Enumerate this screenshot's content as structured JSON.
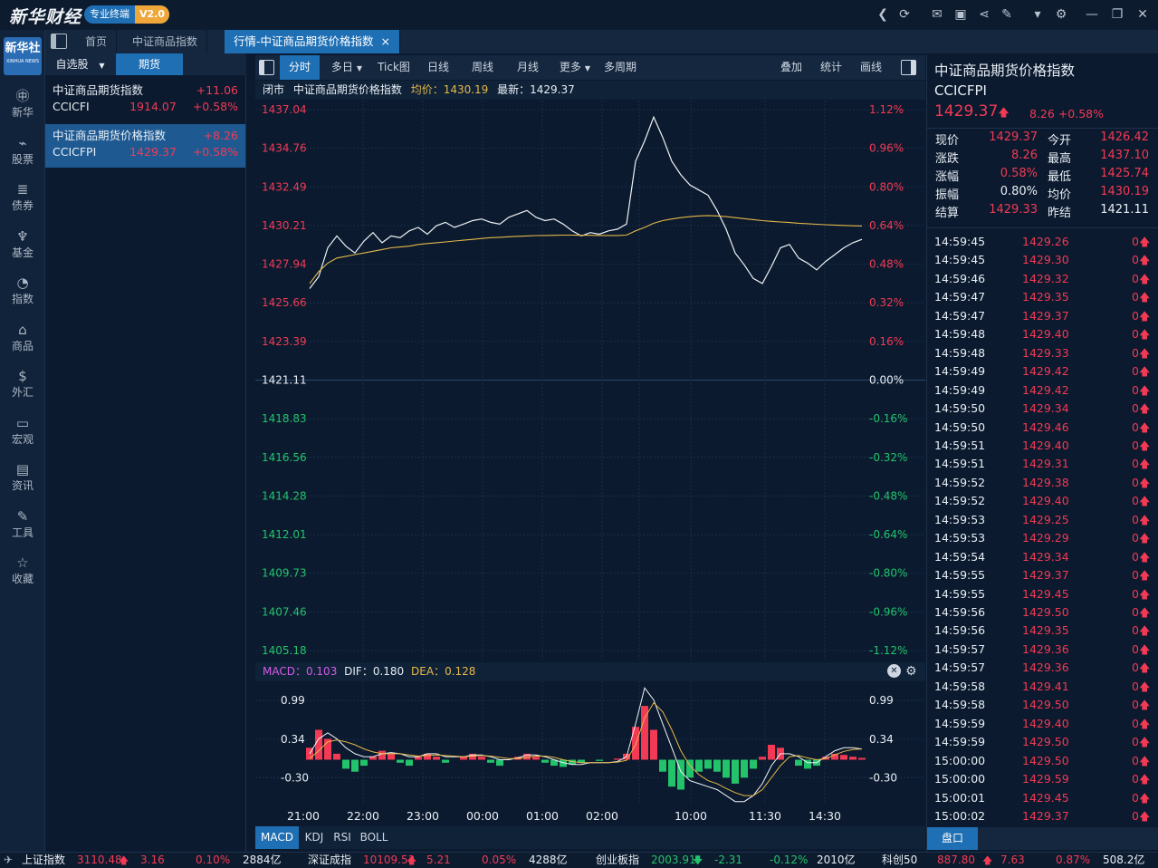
{
  "app": {
    "logo": "新华财经",
    "badge": "专业终端",
    "version": "V2.0"
  },
  "titlebar_icons": [
    "back-icon",
    "refresh-icon",
    "mail-icon",
    "chat-icon",
    "share-icon",
    "notes-icon",
    "shirt-icon",
    "gear-icon",
    "minimize-icon",
    "restore-icon",
    "close-icon"
  ],
  "sidebar": {
    "logo": "新华社",
    "logo_sub": "XINHUA NEWS",
    "items": [
      {
        "label": "新华",
        "icon": "xinhua-icon"
      },
      {
        "label": "股票",
        "icon": "stock-icon"
      },
      {
        "label": "债券",
        "icon": "bond-icon"
      },
      {
        "label": "基金",
        "icon": "fund-icon"
      },
      {
        "label": "指数",
        "icon": "index-icon"
      },
      {
        "label": "商品",
        "icon": "commodity-icon"
      },
      {
        "label": "外汇",
        "icon": "forex-icon"
      },
      {
        "label": "宏观",
        "icon": "macro-icon"
      },
      {
        "label": "资讯",
        "icon": "news-icon"
      },
      {
        "label": "工具",
        "icon": "tools-icon"
      },
      {
        "label": "收藏",
        "icon": "favorite-icon"
      }
    ]
  },
  "tabs": [
    {
      "label": "首页"
    },
    {
      "label": "中证商品指数"
    },
    {
      "label": "行情-中证商品期货价格指数",
      "close": "×"
    }
  ],
  "watchlist": {
    "tabs": [
      {
        "label": "自选股",
        "arrow": "▼"
      },
      {
        "label": "期货"
      }
    ],
    "items": [
      {
        "name": "中证商品期货指数",
        "code": "CCICFI",
        "change": "+11.06",
        "price": "1914.07",
        "pct": "+0.58%"
      },
      {
        "name": "中证商品期货价格指数",
        "code": "CCICFPI",
        "change": "+8.26",
        "price": "1429.37",
        "pct": "+0.58%"
      }
    ]
  },
  "chart_toolbar": {
    "left": [
      "分时",
      "多日",
      "Tick图",
      "日线",
      "周线",
      "月线",
      "更多",
      "多周期"
    ],
    "arrows": [
      "▼",
      "▼"
    ],
    "right": [
      "叠加",
      "统计",
      "画线"
    ]
  },
  "chart_info": {
    "status": "闭市",
    "name": "中证商品期货价格指数",
    "avg": "均价：1430.19",
    "last": "最新：1429.37"
  },
  "macd_info": {
    "macd": "MACD：0.103",
    "dif": "DIF：0.180",
    "dea": "DEA：0.128"
  },
  "indicator_tabs": [
    "MACD",
    "KDJ",
    "RSI",
    "BOLL"
  ],
  "chart_data": [
    {
      "type": "line",
      "title": "",
      "y_ticks_left": [
        "1437.04",
        "1434.76",
        "1432.49",
        "1430.21",
        "1427.94",
        "1425.66",
        "1423.39",
        "1421.11",
        "1418.83",
        "1416.56",
        "1414.28",
        "1412.01",
        "1409.73",
        "1407.46",
        "1405.18"
      ],
      "y_ticks_right": [
        "1.12%",
        "0.96%",
        "0.80%",
        "0.64%",
        "0.48%",
        "0.32%",
        "0.16%",
        "0.00%",
        "-0.16%",
        "-0.32%",
        "-0.48%",
        "-0.64%",
        "-0.80%",
        "-0.96%",
        "-1.12%"
      ],
      "x_ticks": [
        "21:00",
        "22:00",
        "23:00",
        "00:00",
        "01:00",
        "02:00",
        "10:00",
        "11:30",
        "14:30"
      ],
      "ylim": [
        1405.18,
        1437.04
      ],
      "prev_close": 1421.11,
      "series": [
        {
          "name": "",
          "values": [
            1426.5,
            1427.2,
            1428.9,
            1429.6,
            1429.0,
            1428.6,
            1429.3,
            1429.8,
            1429.2,
            1429.6,
            1429.5,
            1429.9,
            1430.1,
            1429.7,
            1430.2,
            1430.4,
            1430.1,
            1430.3,
            1430.5,
            1430.6,
            1430.4,
            1430.3,
            1430.7,
            1430.9,
            1431.1,
            1430.7,
            1430.5,
            1430.6,
            1430.3,
            1429.9,
            1429.6,
            1429.8,
            1429.7,
            1429.9,
            1430.0,
            1430.3,
            1434.0,
            1435.2,
            1436.6,
            1435.4,
            1434.0,
            1433.2,
            1432.6,
            1432.3,
            1432.0,
            1431.1,
            1430.0,
            1428.6,
            1427.9,
            1427.1,
            1426.8,
            1427.8,
            1428.9,
            1429.1,
            1428.3,
            1428.0,
            1427.6,
            1428.1,
            1428.5,
            1428.9,
            1429.2,
            1429.4
          ]
        },
        {
          "name": "",
          "values": [
            1426.8,
            1427.5,
            1428.0,
            1428.3,
            1428.4,
            1428.5,
            1428.6,
            1428.7,
            1428.8,
            1428.9,
            1428.95,
            1429.0,
            1429.1,
            1429.15,
            1429.2,
            1429.25,
            1429.3,
            1429.35,
            1429.4,
            1429.45,
            1429.5,
            1429.52,
            1429.55,
            1429.58,
            1429.6,
            1429.62,
            1429.63,
            1429.64,
            1429.65,
            1429.65,
            1429.64,
            1429.64,
            1429.63,
            1429.63,
            1429.63,
            1429.65,
            1429.9,
            1430.1,
            1430.35,
            1430.5,
            1430.6,
            1430.68,
            1430.74,
            1430.78,
            1430.8,
            1430.78,
            1430.74,
            1430.68,
            1430.62,
            1430.56,
            1430.5,
            1430.46,
            1430.42,
            1430.39,
            1430.35,
            1430.32,
            1430.29,
            1430.26,
            1430.24,
            1430.22,
            1430.2,
            1430.19
          ]
        }
      ]
    },
    {
      "type": "bar",
      "title": "",
      "y_ticks": [
        "0.99",
        "0.34",
        "-0.30"
      ],
      "x_ticks": [
        "21:00",
        "22:00",
        "23:00",
        "00:00",
        "01:00",
        "02:00",
        "10:00",
        "11:30",
        "14:30"
      ],
      "ylim": [
        -0.75,
        1.25
      ],
      "series": [
        {
          "name": "",
          "values": [
            0.2,
            0.5,
            0.35,
            0.1,
            -0.15,
            -0.2,
            -0.1,
            0.05,
            0.15,
            0.1,
            -0.05,
            -0.1,
            0.05,
            0.1,
            0.05,
            -0.05,
            0.0,
            0.05,
            0.1,
            0.05,
            -0.05,
            -0.1,
            0.0,
            0.05,
            0.1,
            0.05,
            -0.05,
            -0.1,
            -0.12,
            -0.08,
            -0.05,
            0.0,
            -0.02,
            0.0,
            0.02,
            0.1,
            0.55,
            0.9,
            0.5,
            -0.2,
            -0.45,
            -0.5,
            -0.3,
            -0.2,
            -0.15,
            -0.2,
            -0.3,
            -0.4,
            -0.3,
            -0.15,
            0.05,
            0.25,
            0.2,
            0.0,
            -0.1,
            -0.15,
            -0.1,
            0.05,
            0.1,
            0.08,
            0.05,
            0.03
          ]
        },
        {
          "name": "",
          "values": [
            0.1,
            0.35,
            0.45,
            0.35,
            0.2,
            0.1,
            0.05,
            0.05,
            0.1,
            0.12,
            0.1,
            0.05,
            0.05,
            0.1,
            0.1,
            0.05,
            0.05,
            0.05,
            0.08,
            0.08,
            0.05,
            0.0,
            0.0,
            0.03,
            0.08,
            0.08,
            0.05,
            0.0,
            -0.05,
            -0.08,
            -0.08,
            -0.05,
            -0.05,
            -0.05,
            -0.03,
            0.05,
            0.6,
            1.2,
            1.0,
            0.6,
            0.2,
            -0.2,
            -0.35,
            -0.4,
            -0.45,
            -0.5,
            -0.6,
            -0.7,
            -0.7,
            -0.6,
            -0.4,
            -0.1,
            0.1,
            0.1,
            0.05,
            -0.05,
            -0.05,
            0.05,
            0.15,
            0.2,
            0.2,
            0.18
          ]
        },
        {
          "name": "",
          "values": [
            0.02,
            0.15,
            0.3,
            0.33,
            0.3,
            0.25,
            0.18,
            0.13,
            0.1,
            0.1,
            0.1,
            0.08,
            0.06,
            0.07,
            0.08,
            0.07,
            0.06,
            0.05,
            0.06,
            0.07,
            0.06,
            0.04,
            0.02,
            0.02,
            0.04,
            0.06,
            0.06,
            0.04,
            0.0,
            -0.03,
            -0.05,
            -0.05,
            -0.05,
            -0.05,
            -0.04,
            -0.01,
            0.25,
            0.7,
            0.95,
            0.8,
            0.5,
            0.15,
            -0.1,
            -0.25,
            -0.35,
            -0.4,
            -0.48,
            -0.55,
            -0.6,
            -0.6,
            -0.5,
            -0.3,
            -0.1,
            0.05,
            0.07,
            0.03,
            0.0,
            0.02,
            0.08,
            0.14,
            0.17,
            0.18
          ]
        }
      ]
    }
  ],
  "right_panel": {
    "name": "中证商品期货价格指数",
    "code": "CCICFPI",
    "price": "1429.37",
    "up_arrow": "🡅",
    "change": "8.26",
    "pct": "+0.58%",
    "quotes": [
      {
        "l1": "现价",
        "v1": "1429.37",
        "c1": "red",
        "l2": "今开",
        "v2": "1426.42",
        "c2": "red"
      },
      {
        "l1": "涨跌",
        "v1": "8.26",
        "c1": "red",
        "l2": "最高",
        "v2": "1437.10",
        "c2": "red"
      },
      {
        "l1": "涨幅",
        "v1": "0.58%",
        "c1": "red",
        "l2": "最低",
        "v2": "1425.74",
        "c2": "red"
      },
      {
        "l1": "振幅",
        "v1": "0.80%",
        "c1": "white",
        "l2": "均价",
        "v2": "1430.19",
        "c2": "red"
      },
      {
        "l1": "结算",
        "v1": "1429.33",
        "c1": "red",
        "l2": "昨结",
        "v2": "1421.11",
        "c2": "white"
      }
    ],
    "ticks": [
      {
        "t": "14:59:45",
        "p": "1429.26",
        "v": "0"
      },
      {
        "t": "14:59:45",
        "p": "1429.30",
        "v": "0"
      },
      {
        "t": "14:59:46",
        "p": "1429.32",
        "v": "0"
      },
      {
        "t": "14:59:47",
        "p": "1429.35",
        "v": "0"
      },
      {
        "t": "14:59:47",
        "p": "1429.37",
        "v": "0"
      },
      {
        "t": "14:59:48",
        "p": "1429.40",
        "v": "0"
      },
      {
        "t": "14:59:48",
        "p": "1429.33",
        "v": "0"
      },
      {
        "t": "14:59:49",
        "p": "1429.42",
        "v": "0"
      },
      {
        "t": "14:59:49",
        "p": "1429.42",
        "v": "0"
      },
      {
        "t": "14:59:50",
        "p": "1429.34",
        "v": "0"
      },
      {
        "t": "14:59:50",
        "p": "1429.46",
        "v": "0"
      },
      {
        "t": "14:59:51",
        "p": "1429.40",
        "v": "0"
      },
      {
        "t": "14:59:51",
        "p": "1429.31",
        "v": "0"
      },
      {
        "t": "14:59:52",
        "p": "1429.38",
        "v": "0"
      },
      {
        "t": "14:59:52",
        "p": "1429.40",
        "v": "0"
      },
      {
        "t": "14:59:53",
        "p": "1429.25",
        "v": "0"
      },
      {
        "t": "14:59:53",
        "p": "1429.29",
        "v": "0"
      },
      {
        "t": "14:59:54",
        "p": "1429.34",
        "v": "0"
      },
      {
        "t": "14:59:55",
        "p": "1429.37",
        "v": "0"
      },
      {
        "t": "14:59:55",
        "p": "1429.45",
        "v": "0"
      },
      {
        "t": "14:59:56",
        "p": "1429.50",
        "v": "0"
      },
      {
        "t": "14:59:56",
        "p": "1429.35",
        "v": "0"
      },
      {
        "t": "14:59:57",
        "p": "1429.36",
        "v": "0"
      },
      {
        "t": "14:59:57",
        "p": "1429.36",
        "v": "0"
      },
      {
        "t": "14:59:58",
        "p": "1429.41",
        "v": "0"
      },
      {
        "t": "14:59:58",
        "p": "1429.50",
        "v": "0"
      },
      {
        "t": "14:59:59",
        "p": "1429.40",
        "v": "0"
      },
      {
        "t": "14:59:59",
        "p": "1429.50",
        "v": "0"
      },
      {
        "t": "15:00:00",
        "p": "1429.50",
        "v": "0"
      },
      {
        "t": "15:00:00",
        "p": "1429.59",
        "v": "0"
      },
      {
        "t": "15:00:01",
        "p": "1429.45",
        "v": "0"
      },
      {
        "t": "15:00:02",
        "p": "1429.37",
        "v": "0"
      }
    ],
    "bottom_tab": "盘口"
  },
  "statusbar": [
    {
      "name": "上证指数",
      "value": "3110.48",
      "arrow": "🡅",
      "change": "3.16",
      "pct": "0.10%",
      "amount": "2884亿",
      "color": "red"
    },
    {
      "name": "深证成指",
      "value": "10109.53",
      "arrow": "🡅",
      "change": "5.21",
      "pct": "0.05%",
      "amount": "4288亿",
      "color": "red"
    },
    {
      "name": "创业板指",
      "value": "2003.91",
      "arrow": "🡇",
      "change": "-2.31",
      "pct": "-0.12%",
      "amount": "2010亿",
      "color": "green"
    },
    {
      "name": "科创50",
      "value": "887.80",
      "arrow": "🡅",
      "change": "7.63",
      "pct": "0.87%",
      "amount": "508.2亿",
      "color": "red"
    }
  ],
  "colors": {
    "up": "#f23a55",
    "down": "#22c36b",
    "accent": "#1f6fb4",
    "avg_line": "#e5b94a",
    "bg": "#0b1a2e"
  }
}
